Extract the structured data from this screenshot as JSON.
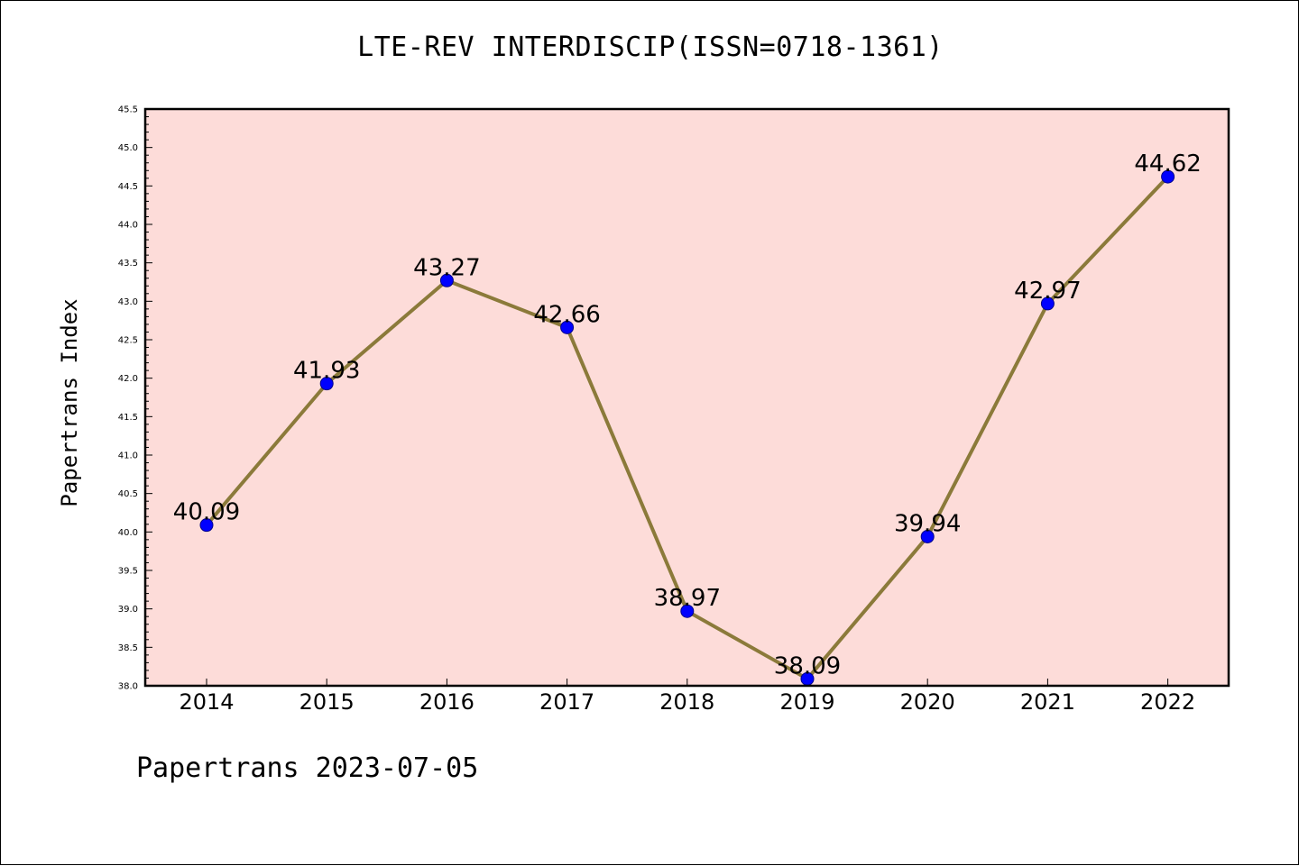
{
  "chart_title": "LTE-REV INTERDISCIP(ISSN=0718-1361)",
  "footer_note": "Papertrans 2023-07-05",
  "colors": {
    "plot_background": "#fddcd9",
    "line": "#8b7a3a",
    "marker_fill": "#0000ff",
    "marker_edge": "#00008b",
    "axes": "#000000"
  },
  "chart_data": {
    "type": "line",
    "title": "LTE-REV INTERDISCIP(ISSN=0718-1361)",
    "xlabel": "",
    "ylabel": "Papertrans Index",
    "categories": [
      "2014",
      "2015",
      "2016",
      "2017",
      "2018",
      "2019",
      "2020",
      "2021",
      "2022"
    ],
    "series": [
      {
        "values": [
          40.09,
          41.93,
          43.27,
          42.66,
          38.97,
          38.09,
          39.94,
          42.97,
          44.62
        ],
        "labels": [
          "40.09",
          "41.93",
          "43.27",
          "42.66",
          "38.97",
          "38.09",
          "39.94",
          "42.97",
          "44.62"
        ]
      }
    ],
    "ylim": [
      38.0,
      45.5
    ],
    "yticks": [
      "38.0",
      "38.5",
      "39.0",
      "39.5",
      "40.0",
      "40.5",
      "41.0",
      "41.5",
      "42.0",
      "42.5",
      "43.0",
      "43.5",
      "44.0",
      "44.5",
      "45.0",
      "45.5"
    ],
    "grid": false,
    "legend": "none"
  }
}
